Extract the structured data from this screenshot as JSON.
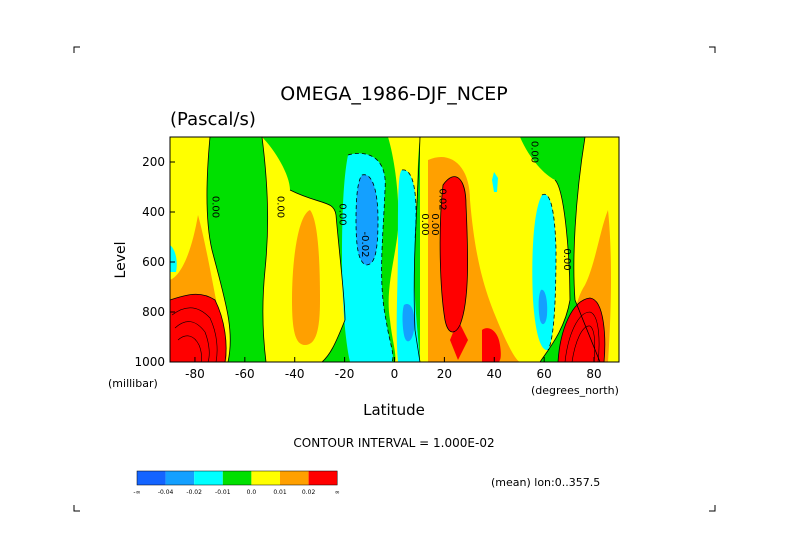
{
  "chart_data": {
    "type": "heatmap",
    "title": "OMEGA_1986-DJF_NCEP",
    "subtitle": "(Pascal/s)",
    "xlabel": "Latitude",
    "ylabel": "Level",
    "x_unit_label": "(degrees_north)",
    "y_unit_label": "(millibar)",
    "xlim": [
      -90,
      90
    ],
    "ylim": [
      1000,
      100
    ],
    "x_ticks": [
      -80,
      -60,
      -40,
      -20,
      0,
      20,
      40,
      60,
      80
    ],
    "y_ticks": [
      200,
      400,
      600,
      800,
      1000
    ],
    "contour_interval_text": "CONTOUR INTERVAL = 1.000E-02",
    "mean_text": "(mean) lon:0..357.5",
    "contour_labels": [
      {
        "x": -73,
        "y": 380,
        "text": "0.00"
      },
      {
        "x": -47,
        "y": 380,
        "text": "0.00"
      },
      {
        "x": -22,
        "y": 410,
        "text": "0.00"
      },
      {
        "x": -13,
        "y": 530,
        "text": "-0.02"
      },
      {
        "x": 11,
        "y": 450,
        "text": "0.00"
      },
      {
        "x": 15,
        "y": 450,
        "text": "0.00"
      },
      {
        "x": 18,
        "y": 350,
        "text": "0.02"
      },
      {
        "x": 55,
        "y": 160,
        "text": "0.00"
      },
      {
        "x": 68,
        "y": 590,
        "text": "0.00"
      }
    ],
    "legend_colors": [
      "#1464ff",
      "#14a0ff",
      "#00ffff",
      "#00e000",
      "#ffff00",
      "#ffa000",
      "#ff0000"
    ],
    "legend_labels": [
      "-∞",
      "-0.04",
      "-0.02",
      "-0.01",
      "0.0",
      "0.01",
      "0.02",
      "∞"
    ]
  }
}
